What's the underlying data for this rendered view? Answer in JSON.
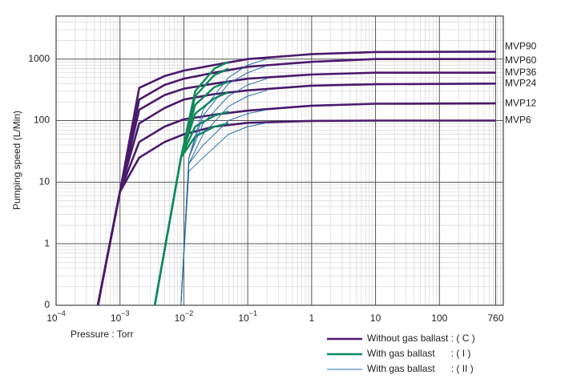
{
  "chart_data": {
    "type": "line",
    "x_label": "Pressure : Torr",
    "y_label": "Pumping speed (L/Min)",
    "log_x": true,
    "log_y": true,
    "grid": true,
    "minor_grid": true,
    "xlim": [
      0.0001,
      1000
    ],
    "ylim": [
      0.1,
      5000
    ],
    "xticks": [
      {
        "value": 0.0001,
        "label": "10",
        "exponent": "−4"
      },
      {
        "value": 0.001,
        "label": "10",
        "exponent": "−3"
      },
      {
        "value": 0.01,
        "label": "10",
        "exponent": "−2"
      },
      {
        "value": 0.1,
        "label": "10",
        "exponent": "−1"
      },
      1,
      10,
      100,
      760
    ],
    "yticks": [
      {
        "value": 0.1,
        "label": "0"
      },
      1,
      10,
      100,
      1000
    ],
    "groups": [
      {
        "label": "Without gas ballast : ( C )",
        "color": "#4a1a6b",
        "width": 2.6,
        "series": [
          {
            "name": "MVP90",
            "x": [
              0.00045,
              0.001,
              0.002,
              0.005,
              0.01,
              0.03,
              0.1,
              1,
              10,
              760
            ],
            "values": [
              0.1,
              7,
              340,
              530,
              650,
              800,
              1000,
              1200,
              1300,
              1320
            ]
          },
          {
            "name": "MVP60",
            "x": [
              0.00045,
              0.001,
              0.002,
              0.005,
              0.01,
              0.03,
              0.1,
              1,
              10,
              760
            ],
            "values": [
              0.1,
              7,
              220,
              380,
              480,
              600,
              750,
              900,
              1000,
              1000
            ]
          },
          {
            "name": "MVP36",
            "x": [
              0.00045,
              0.001,
              0.002,
              0.005,
              0.01,
              0.03,
              0.1,
              1,
              10,
              760
            ],
            "values": [
              0.1,
              7,
              150,
              260,
              330,
              400,
              480,
              560,
              600,
              600
            ]
          },
          {
            "name": "MVP24",
            "x": [
              0.00045,
              0.001,
              0.002,
              0.005,
              0.01,
              0.03,
              0.1,
              1,
              10,
              760
            ],
            "values": [
              0.1,
              7,
              90,
              160,
              220,
              270,
              310,
              370,
              390,
              400
            ]
          },
          {
            "name": "MVP12",
            "x": [
              0.00045,
              0.001,
              0.002,
              0.005,
              0.01,
              0.03,
              0.1,
              1,
              10,
              760
            ],
            "values": [
              0.1,
              7,
              45,
              80,
              105,
              125,
              145,
              175,
              188,
              190
            ]
          },
          {
            "name": "MVP6",
            "x": [
              0.00045,
              0.001,
              0.002,
              0.005,
              0.01,
              0.03,
              0.1,
              1,
              10,
              760
            ],
            "values": [
              0.1,
              7,
              25,
              45,
              60,
              80,
              92,
              99,
              100,
              100
            ]
          }
        ]
      },
      {
        "label": "With gas ballast      : ( I )",
        "color": "#0f8a5a",
        "width": 2.4,
        "series": [
          {
            "x": [
              0.0035,
              0.009,
              0.015,
              0.03,
              0.05
            ],
            "values": [
              0.1,
              25,
              300,
              700,
              900
            ]
          },
          {
            "x": [
              0.0035,
              0.009,
              0.015,
              0.03,
              0.05
            ],
            "values": [
              0.1,
              25,
              250,
              550,
              700
            ]
          },
          {
            "x": [
              0.0035,
              0.009,
              0.015,
              0.03,
              0.05
            ],
            "values": [
              0.1,
              25,
              180,
              350,
              430
            ]
          },
          {
            "x": [
              0.0035,
              0.009,
              0.015,
              0.03,
              0.05
            ],
            "values": [
              0.1,
              25,
              130,
              230,
              290
            ]
          },
          {
            "x": [
              0.0035,
              0.009,
              0.015,
              0.03,
              0.05
            ],
            "values": [
              0.1,
              25,
              80,
              120,
              140
            ]
          },
          {
            "x": [
              0.0035,
              0.009,
              0.015,
              0.03,
              0.05
            ],
            "values": [
              0.1,
              25,
              55,
              80,
              90
            ]
          }
        ]
      },
      {
        "label": "With gas ballast      : ( II )",
        "color": "#2a6fa8",
        "width": 1,
        "series": [
          {
            "x": [
              0.009,
              0.012,
              0.02,
              0.05,
              0.1,
              0.2
            ],
            "values": [
              0.1,
              25,
              150,
              500,
              800,
              1000
            ]
          },
          {
            "x": [
              0.009,
              0.012,
              0.02,
              0.05,
              0.1,
              0.2
            ],
            "values": [
              0.1,
              25,
              120,
              400,
              600,
              780
            ]
          },
          {
            "x": [
              0.009,
              0.012,
              0.02,
              0.05,
              0.1,
              0.2
            ],
            "values": [
              0.1,
              25,
              90,
              250,
              380,
              480
            ]
          },
          {
            "x": [
              0.009,
              0.012,
              0.02,
              0.05,
              0.1,
              0.2
            ],
            "values": [
              0.1,
              20,
              60,
              170,
              250,
              310
            ]
          },
          {
            "x": [
              0.009,
              0.012,
              0.02,
              0.05,
              0.1,
              0.2
            ],
            "values": [
              0.1,
              20,
              40,
              100,
              130,
              150
            ]
          },
          {
            "x": [
              0.009,
              0.012,
              0.02,
              0.05,
              0.1,
              0.2
            ],
            "values": [
              0.1,
              15,
              25,
              60,
              80,
              92
            ]
          }
        ]
      }
    ]
  }
}
